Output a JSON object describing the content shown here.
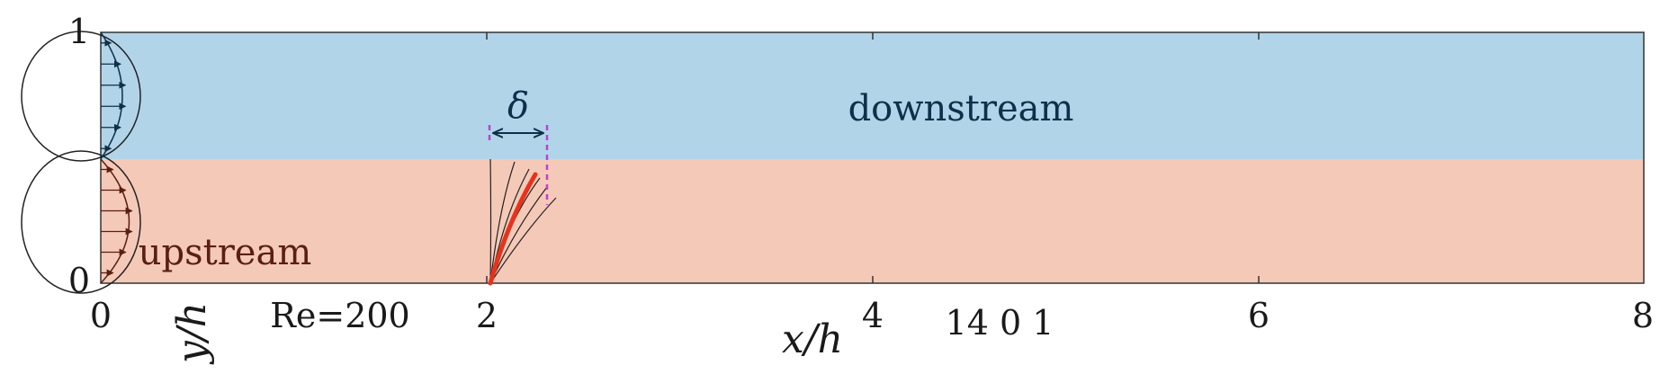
{
  "figure": {
    "regions": {
      "upstream": {
        "label": "upstream",
        "color": "#f5c9b8",
        "text_color": "#5a1f12"
      },
      "downstream": {
        "label": "downstream",
        "color": "#b2d4e9",
        "text_color": "#0f2f4a"
      }
    },
    "annotations": {
      "delta_label": "δ",
      "reynolds": "Re=200",
      "stray_numbers": "14 0 1"
    },
    "axes": {
      "x_label": "x/h",
      "y_label": "y/h",
      "x_ticks": [
        "0",
        "2",
        "4",
        "6",
        "8"
      ],
      "y_ticks": [
        "0",
        "1"
      ]
    },
    "colors": {
      "filament_highlight": "#e8321c",
      "delta_marker": "#c040d0",
      "frame": "#333333"
    }
  }
}
